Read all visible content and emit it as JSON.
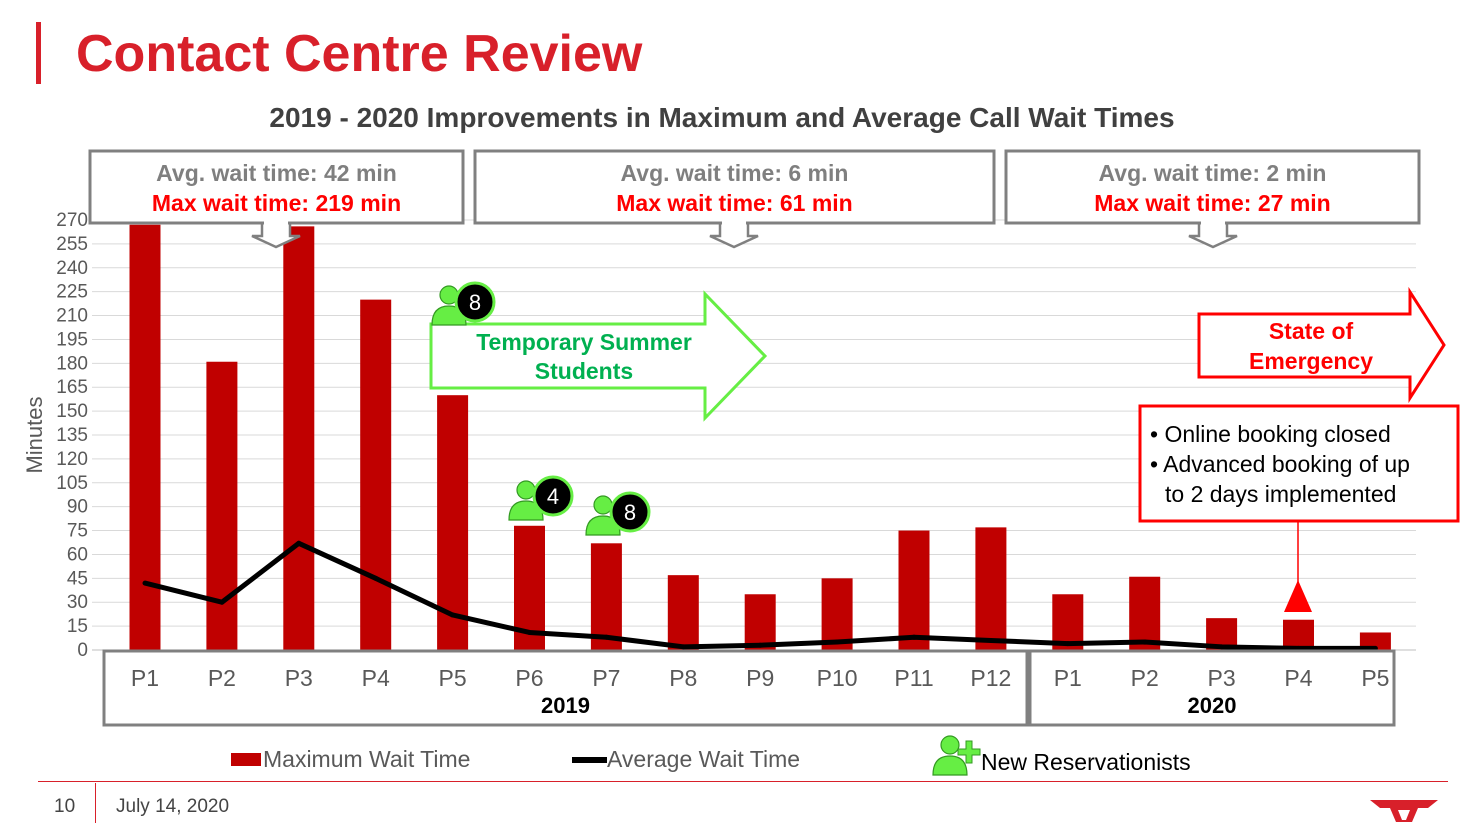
{
  "slide": {
    "title": "Contact Centre Review",
    "page_number": "10",
    "date": "July 14, 2020"
  },
  "colors": {
    "brand_red": "#d8202a",
    "bar_red": "#c00000",
    "line_black": "#000000",
    "summer_green": "#00b050",
    "reservationist_green": "#66ee44"
  },
  "chart_data": {
    "type": "bar",
    "title": "2019 - 2020 Improvements in Maximum and Average Call Wait Times",
    "ylabel": "Minutes",
    "ylim": [
      0,
      270
    ],
    "yticks": [
      0,
      15,
      30,
      45,
      60,
      75,
      90,
      105,
      120,
      135,
      150,
      165,
      180,
      195,
      210,
      225,
      240,
      255,
      270
    ],
    "grid": true,
    "categories": [
      "P1",
      "P2",
      "P3",
      "P4",
      "P5",
      "P6",
      "P7",
      "P8",
      "P9",
      "P10",
      "P11",
      "P12",
      "P1",
      "P2",
      "P3",
      "P4",
      "P5"
    ],
    "groups": [
      {
        "label": "2019",
        "count": 12
      },
      {
        "label": "2020",
        "count": 5
      }
    ],
    "series": [
      {
        "name": "Maximum Wait Time",
        "type": "bar",
        "color": "#c00000",
        "values": [
          267,
          181,
          266,
          220,
          160,
          78,
          67,
          47,
          35,
          45,
          75,
          77,
          35,
          46,
          20,
          19,
          11
        ]
      },
      {
        "name": "Average Wait Time",
        "type": "line",
        "color": "#000000",
        "values": [
          42,
          30,
          67,
          45,
          22,
          11,
          8,
          2,
          3,
          5,
          8,
          6,
          4,
          5,
          2,
          1,
          1
        ]
      }
    ],
    "legend": [
      {
        "label": "Maximum Wait Time",
        "marker": "bar"
      },
      {
        "label": "Average Wait Time",
        "marker": "line"
      },
      {
        "label": "New Reservationists",
        "marker": "person-plus-icon"
      }
    ],
    "legend_position": "bottom",
    "callouts": [
      {
        "avg": "Avg. wait time: 42 min",
        "max": "Max wait time: 219 min"
      },
      {
        "avg": "Avg. wait time: 6 min",
        "max": "Max wait time: 61 min"
      },
      {
        "avg": "Avg. wait time: 2 min",
        "max": "Max wait time: 27 min"
      }
    ],
    "annotations": {
      "summer_students": "Temporary Summer Students",
      "emergency": "State of Emergency",
      "notes": [
        "Online booking closed",
        "Advanced booking of up to 2 days implemented"
      ],
      "reservationists": [
        {
          "period": "P5 2019",
          "count": "8"
        },
        {
          "period": "P6 2019",
          "count": "4"
        },
        {
          "period": "P7 2019",
          "count": "8"
        }
      ]
    }
  }
}
